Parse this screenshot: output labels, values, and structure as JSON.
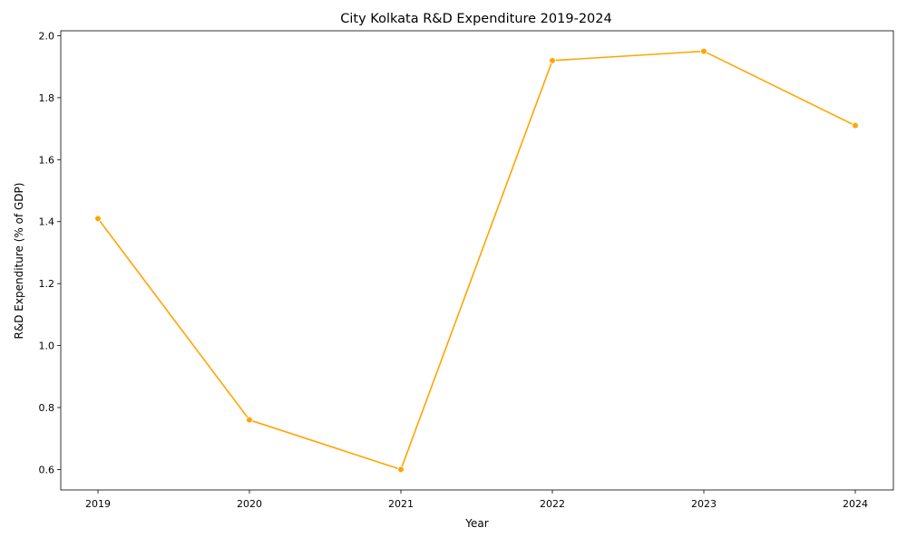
{
  "chart_data": {
    "type": "line",
    "title": "City Kolkata R&D Expenditure 2019-2024",
    "xlabel": "Year",
    "ylabel": "R&D Expenditure (% of GDP)",
    "x": [
      "2019",
      "2020",
      "2021",
      "2022",
      "2023",
      "2024"
    ],
    "series": [
      {
        "values": [
          1.41,
          0.76,
          0.6,
          1.92,
          1.95,
          1.71
        ],
        "color": "#FFA500",
        "marker": "circle"
      }
    ],
    "ylim": [
      0.534,
      2.016
    ],
    "yticks": [
      0.6,
      0.8,
      1.0,
      1.2,
      1.4,
      1.6,
      1.8,
      2.0
    ],
    "ytick_labels": [
      "0.6",
      "0.8",
      "1.0",
      "1.2",
      "1.4",
      "1.6",
      "1.8",
      "2.0"
    ],
    "grid": false,
    "legend": false
  }
}
